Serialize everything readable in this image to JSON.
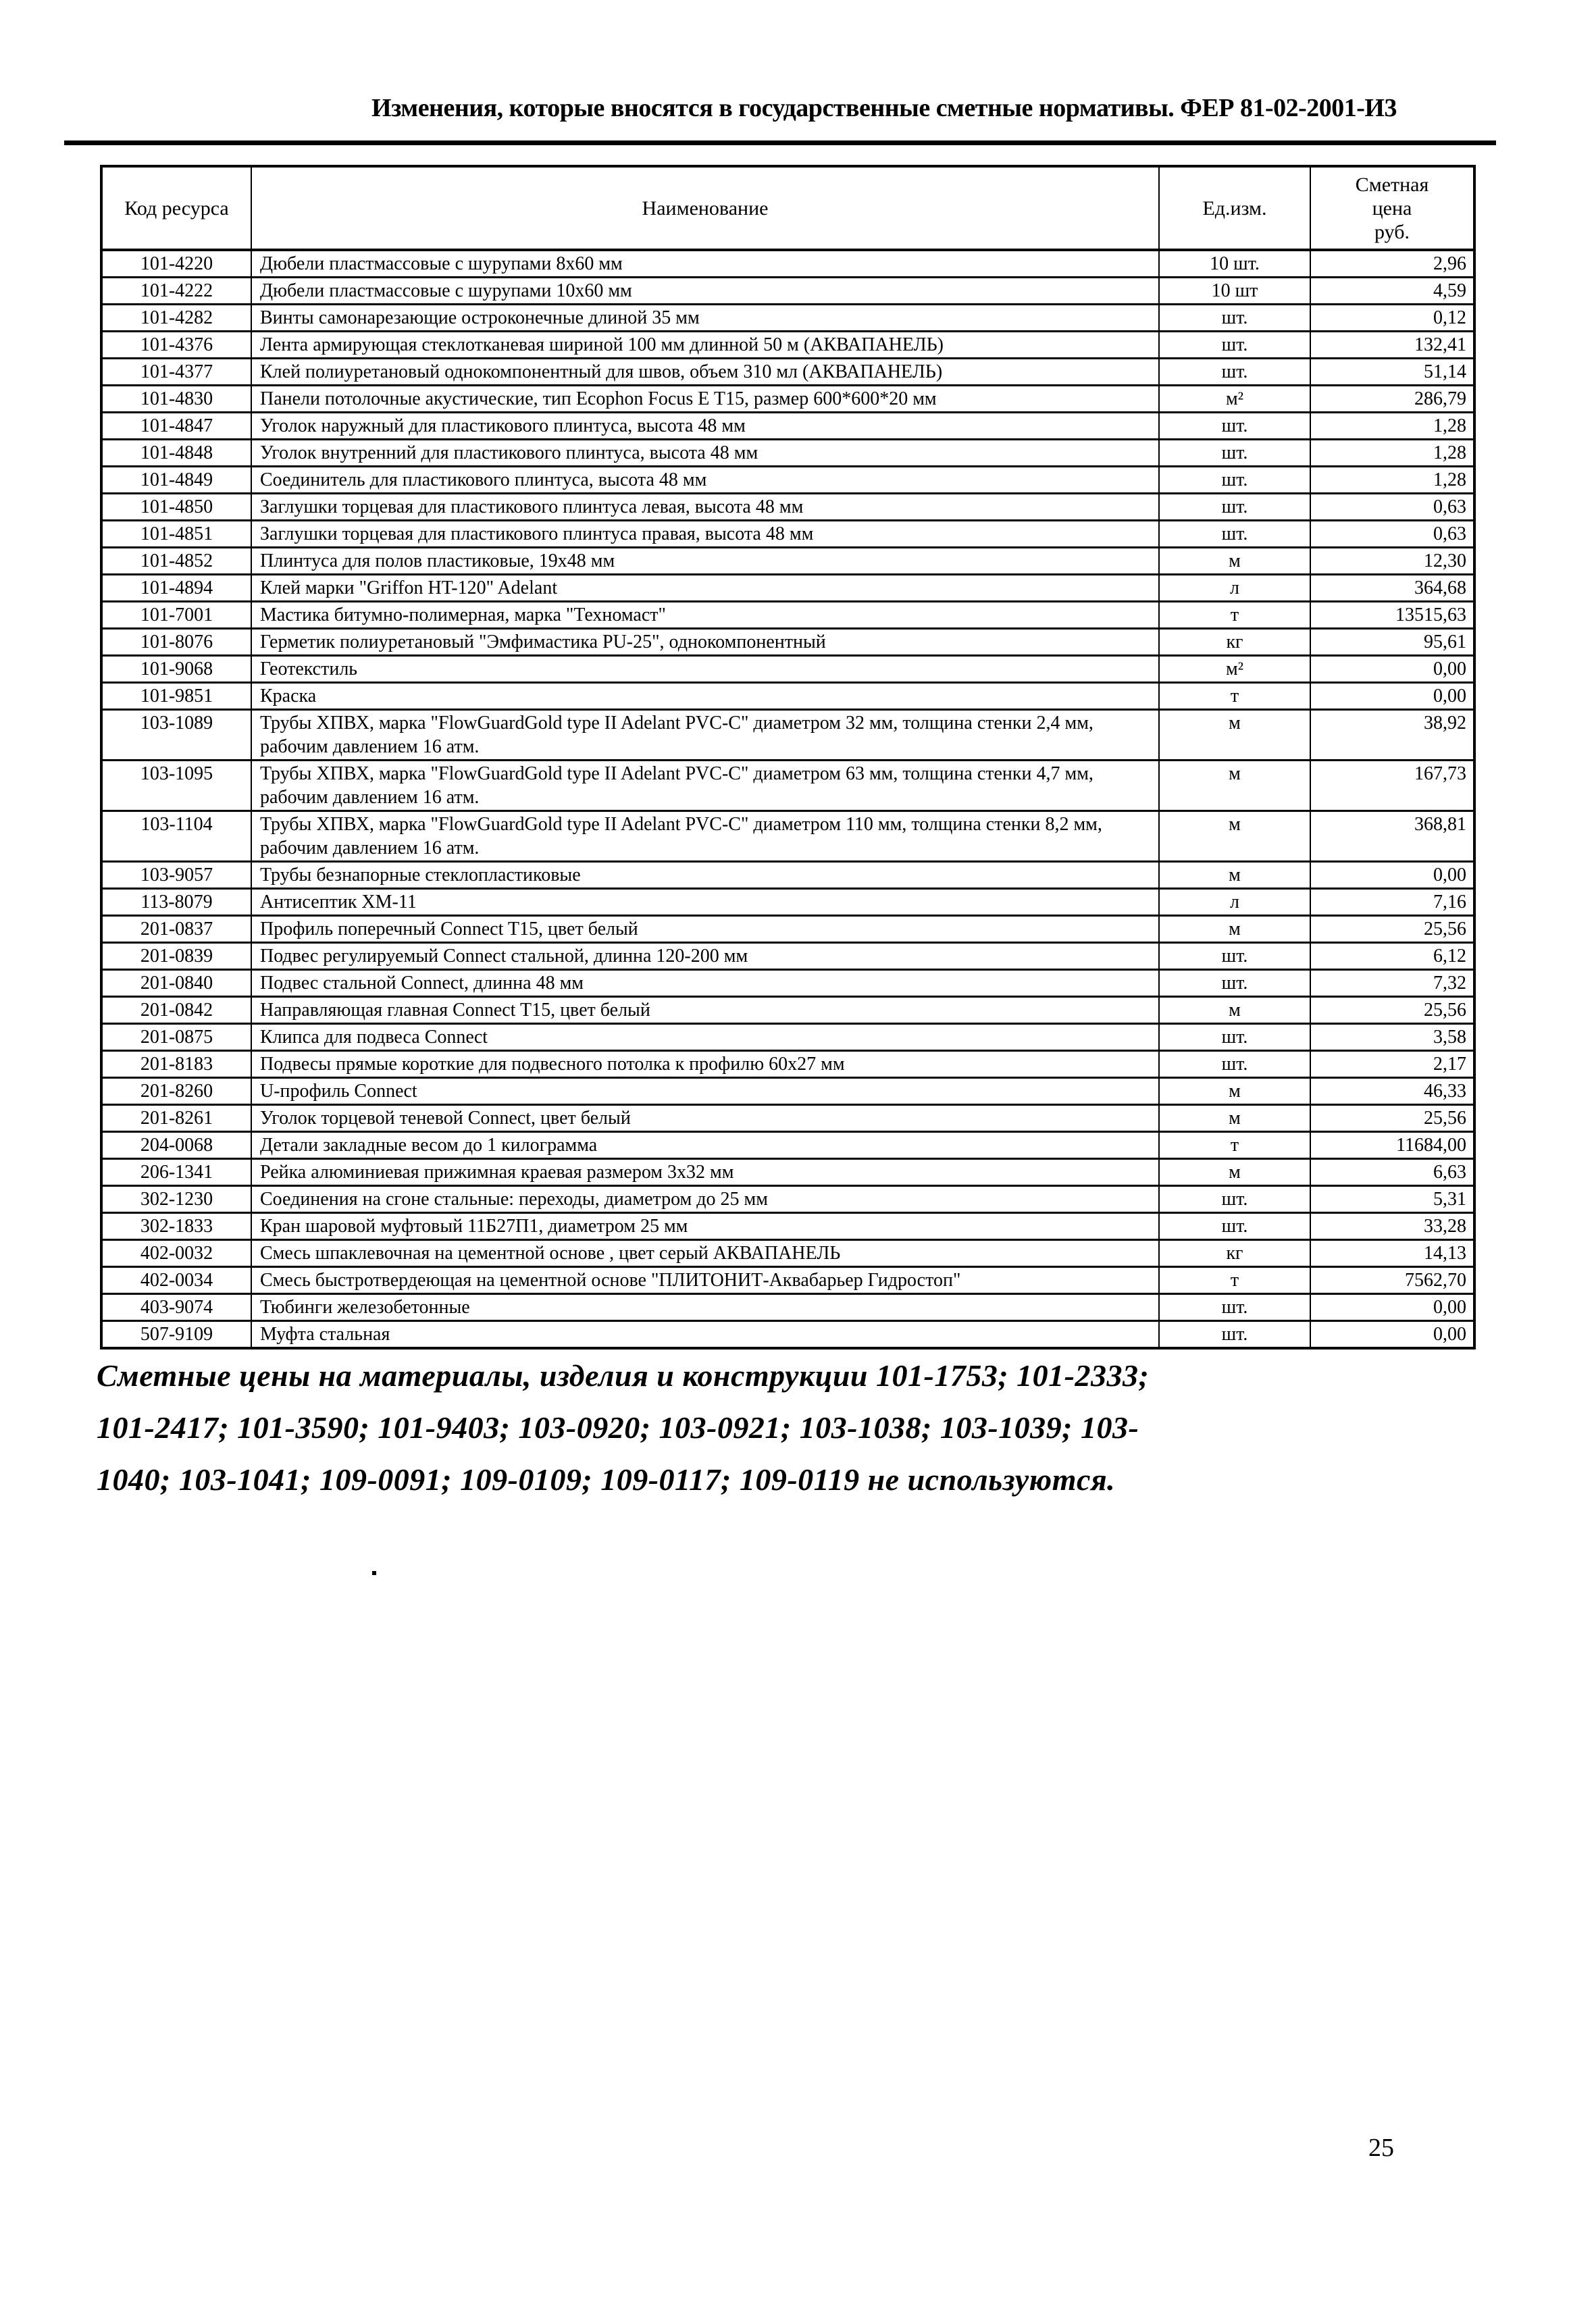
{
  "header": {
    "title": "Изменения, которые вносятся в государственные сметные нормативы. ФЕР 81-02-2001-И3"
  },
  "table": {
    "columns": {
      "code": "Код ресурса",
      "name": "Наименование",
      "unit": "Ед.изм.",
      "price": "Сметная\nцена\nруб."
    },
    "rows": [
      {
        "code": "101-4220",
        "name": "Дюбели пластмассовые с шурупами 8х60 мм",
        "unit": "10 шт.",
        "price": "2,96"
      },
      {
        "code": "101-4222",
        "name": "Дюбели пластмассовые с шурупами 10х60 мм",
        "unit": "10 шт",
        "price": "4,59"
      },
      {
        "code": "101-4282",
        "name": "Винты самонарезающие остроконечные длиной 35 мм",
        "unit": "шт.",
        "price": "0,12"
      },
      {
        "code": "101-4376",
        "name": "Лента армирующая стеклотканевая шириной 100 мм длинной 50 м (АКВАПАНЕЛЬ)",
        "unit": "шт.",
        "price": "132,41"
      },
      {
        "code": "101-4377",
        "name": "Клей полиуретановый однокомпонентный для швов, объем 310 мл (АКВАПАНЕЛЬ)",
        "unit": "шт.",
        "price": "51,14"
      },
      {
        "code": "101-4830",
        "name": "Панели потолочные акустические, тип Ecophon Focus E T15, размер 600*600*20 мм",
        "unit": "м²",
        "price": "286,79"
      },
      {
        "code": "101-4847",
        "name": "Уголок наружный для пластикового плинтуса, высота 48 мм",
        "unit": "шт.",
        "price": "1,28"
      },
      {
        "code": "101-4848",
        "name": "Уголок внутренний для пластикового плинтуса, высота 48 мм",
        "unit": "шт.",
        "price": "1,28"
      },
      {
        "code": "101-4849",
        "name": "Соединитель для пластикового плинтуса, высота 48 мм",
        "unit": "шт.",
        "price": "1,28"
      },
      {
        "code": "101-4850",
        "name": "Заглушки торцевая для пластикового плинтуса левая, высота 48 мм",
        "unit": "шт.",
        "price": "0,63"
      },
      {
        "code": "101-4851",
        "name": "Заглушки торцевая для пластикового плинтуса правая, высота 48 мм",
        "unit": "шт.",
        "price": "0,63"
      },
      {
        "code": "101-4852",
        "name": "Плинтуса для полов пластиковые, 19х48 мм",
        "unit": "м",
        "price": "12,30"
      },
      {
        "code": "101-4894",
        "name": "Клей марки \"Griffon HT-120\" Adelant",
        "unit": "л",
        "price": "364,68"
      },
      {
        "code": "101-7001",
        "name": "Мастика битумно-полимерная, марка \"Техномаст\"",
        "unit": "т",
        "price": "13515,63"
      },
      {
        "code": "101-8076",
        "name": "Герметик полиуретановый \"Эмфимастика PU-25\", однокомпонентный",
        "unit": "кг",
        "price": "95,61"
      },
      {
        "code": "101-9068",
        "name": "Геотекстиль",
        "unit": "м²",
        "price": "0,00"
      },
      {
        "code": "101-9851",
        "name": "Краска",
        "unit": "т",
        "price": "0,00"
      },
      {
        "code": "103-1089",
        "name": "Трубы ХПВХ, марка \"FlowGuardGold type II Adelant PVC-C\" диаметром 32 мм, толщина стенки 2,4 мм, рабочим давлением 16 атм.",
        "unit": "м",
        "price": "38,92"
      },
      {
        "code": "103-1095",
        "name": "Трубы ХПВХ, марка \"FlowGuardGold type II Adelant PVC-C\" диаметром 63 мм, толщина стенки 4,7 мм, рабочим давлением 16 атм.",
        "unit": "м",
        "price": "167,73"
      },
      {
        "code": "103-1104",
        "name": "Трубы ХПВХ, марка \"FlowGuardGold type II Adelant PVC-C\" диаметром 110 мм, толщина стенки 8,2 мм, рабочим давлением 16 атм.",
        "unit": "м",
        "price": "368,81"
      },
      {
        "code": "103-9057",
        "name": "Трубы безнапорные стеклопластиковые",
        "unit": "м",
        "price": "0,00"
      },
      {
        "code": "113-8079",
        "name": "Антисептик ХМ-11",
        "unit": "л",
        "price": "7,16"
      },
      {
        "code": "201-0837",
        "name": "Профиль поперечный Connect T15, цвет белый",
        "unit": "м",
        "price": "25,56"
      },
      {
        "code": "201-0839",
        "name": "Подвес регулируемый Connect стальной, длинна 120-200 мм",
        "unit": "шт.",
        "price": "6,12"
      },
      {
        "code": "201-0840",
        "name": "Подвес стальной Connect, длинна 48 мм",
        "unit": "шт.",
        "price": "7,32"
      },
      {
        "code": "201-0842",
        "name": "Направляющая главная Connect T15, цвет белый",
        "unit": "м",
        "price": "25,56"
      },
      {
        "code": "201-0875",
        "name": "Клипса для подвеса Connect",
        "unit": "шт.",
        "price": "3,58"
      },
      {
        "code": "201-8183",
        "name": "Подвесы прямые короткие для подвесного потолка к профилю 60х27 мм",
        "unit": "шт.",
        "price": "2,17"
      },
      {
        "code": "201-8260",
        "name": "U-профиль Connect",
        "unit": "м",
        "price": "46,33"
      },
      {
        "code": "201-8261",
        "name": "Уголок торцевой теневой Connect, цвет белый",
        "unit": "м",
        "price": "25,56"
      },
      {
        "code": "204-0068",
        "name": "Детали закладные весом до 1 килограмма",
        "unit": "т",
        "price": "11684,00"
      },
      {
        "code": "206-1341",
        "name": "Рейка алюминиевая прижимная краевая размером 3х32 мм",
        "unit": "м",
        "price": "6,63"
      },
      {
        "code": "302-1230",
        "name": "Соединения на сгоне стальные: переходы, диаметром до 25 мм",
        "unit": "шт.",
        "price": "5,31"
      },
      {
        "code": "302-1833",
        "name": "Кран шаровой муфтовый 11Б27П1, диаметром 25 мм",
        "unit": "шт.",
        "price": "33,28"
      },
      {
        "code": "402-0032",
        "name": "Смесь шпаклевочная на цементной основе , цвет серый АКВАПАНЕЛЬ",
        "unit": "кг",
        "price": "14,13"
      },
      {
        "code": "402-0034",
        "name": "Смесь быстротвердеющая на цементной основе \"ПЛИТОНИТ-Аквабарьер Гидростоп\"",
        "unit": "т",
        "price": "7562,70"
      },
      {
        "code": "403-9074",
        "name": "Тюбинги железобетонные",
        "unit": "шт.",
        "price": "0,00"
      },
      {
        "code": "507-9109",
        "name": "Муфта стальная",
        "unit": "шт.",
        "price": "0,00"
      }
    ]
  },
  "notes": {
    "lines": [
      "Сметные цены на материалы, изделия и конструкции 101-1753; 101-2333;",
      "101-2417; 101-3590; 101-9403; 103-0920; 103-0921; 103-1038; 103-1039; 103-",
      "1040; 103-1041; 109-0091; 109-0109; 109-0117; 109-0119 не используются."
    ]
  },
  "footer": {
    "page_number": "25"
  }
}
